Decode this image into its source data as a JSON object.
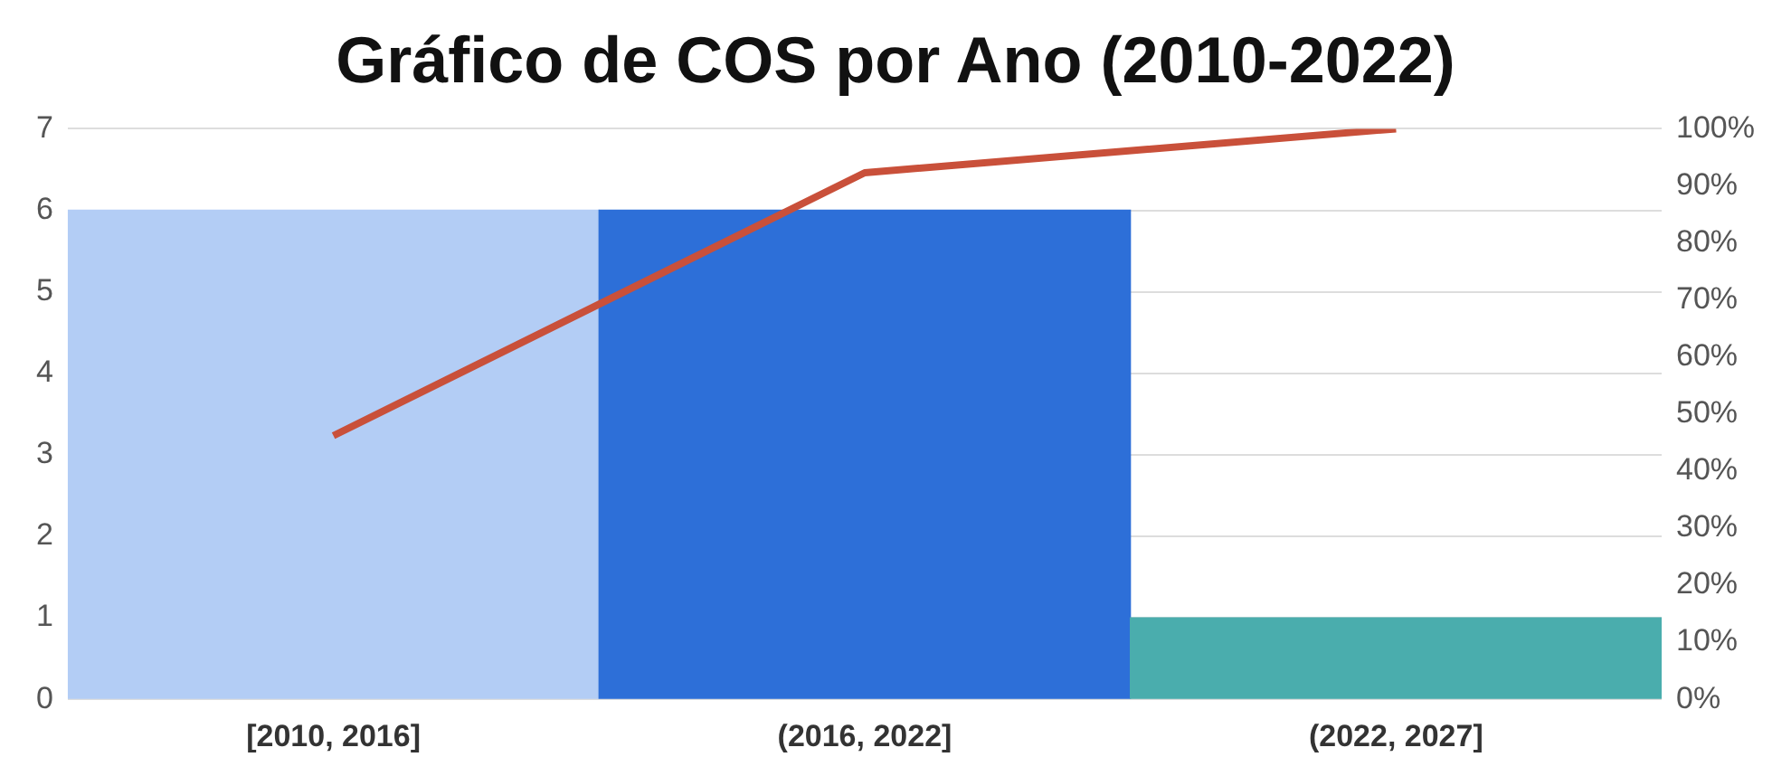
{
  "chart_data": {
    "type": "bar",
    "title": "Gráfico de COS por Ano (2010-2022)",
    "categories": [
      "[2010, 2016]",
      "(2016, 2022]",
      "(2022, 2027]"
    ],
    "series": [
      {
        "colors": [
          "#b3cdf5",
          "#2d6fd8",
          "#4aadad"
        ],
        "values": [
          6,
          6,
          1
        ]
      },
      {
        "type": "line",
        "axis": "y2",
        "color": "#c9503a",
        "values": [
          46.2,
          92.3,
          100
        ]
      }
    ],
    "ylim": [
      0,
      7
    ],
    "yticks": [
      0,
      1,
      2,
      3,
      4,
      5,
      6,
      7
    ],
    "y2lim": [
      0,
      100
    ],
    "y2ticks": [
      {
        "value": 0,
        "label": "0%"
      },
      {
        "value": 10,
        "label": "10%"
      },
      {
        "value": 20,
        "label": "20%"
      },
      {
        "value": 30,
        "label": "30%"
      },
      {
        "value": 40,
        "label": "40%"
      },
      {
        "value": 50,
        "label": "50%"
      },
      {
        "value": 60,
        "label": "60%"
      },
      {
        "value": 70,
        "label": "70%"
      },
      {
        "value": 80,
        "label": "80%"
      },
      {
        "value": 90,
        "label": "90%"
      },
      {
        "value": 100,
        "label": "100%"
      }
    ],
    "grid": "y",
    "legend": false
  }
}
